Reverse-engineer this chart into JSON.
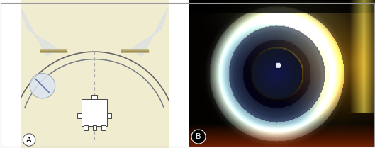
{
  "fig_width": 5.29,
  "fig_height": 2.09,
  "dpi": 100,
  "bg_color_A": "#f0ecd0",
  "panel_A_label": "A",
  "panel_B_label": "B",
  "label_fontsize": 8,
  "cornea_color": "#666666",
  "cornea_lw": 1.0,
  "slit_color": "#b8a870",
  "dashed_color": "#aaaaaa",
  "beam_color": "#d8dde8",
  "microscope_color": "#444444",
  "microscope_body_color": "#ffffff"
}
